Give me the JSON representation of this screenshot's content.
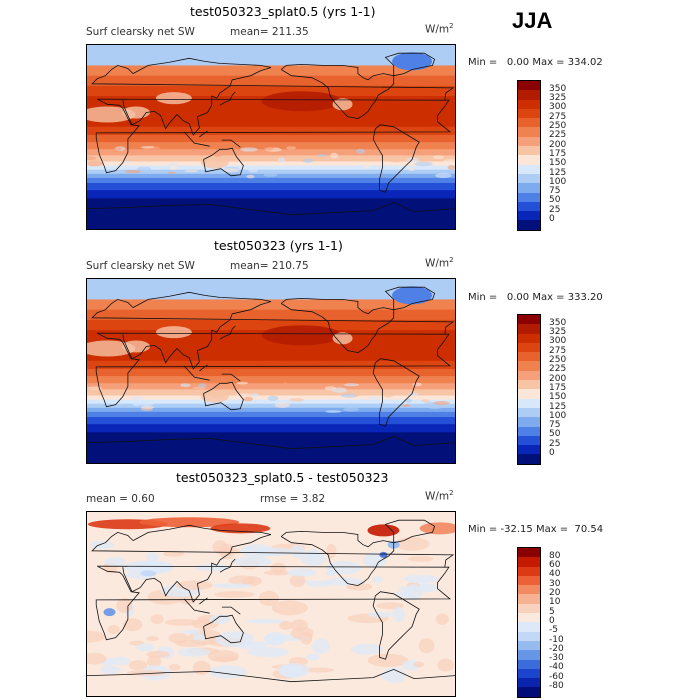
{
  "season": "JJA",
  "panels": [
    {
      "title": "test050323_splat0.5 (yrs 1-1)",
      "field": "Surf clearsky net SW",
      "mean_label": "mean= 211.35",
      "units_base": "W/m",
      "units_exp": "2",
      "min_label": "Min =",
      "min_value": "0.00",
      "max_label": "Max =",
      "max_value": "334.02",
      "colorbar_labels": [
        "350",
        "325",
        "300",
        "275",
        "250",
        "225",
        "200",
        "175",
        "150",
        "125",
        "100",
        "75",
        "50",
        "25",
        "0"
      ],
      "colorbar_colors": [
        "#8b0000",
        "#b31b00",
        "#cc2e00",
        "#dc4410",
        "#e8622e",
        "#f08250",
        "#f5a07a",
        "#f8c4a6",
        "#fbe6d8",
        "#d8e8fb",
        "#aecdf4",
        "#7eaaee",
        "#4e80e6",
        "#2450d8",
        "#0a26b8",
        "#02107a"
      ]
    },
    {
      "title": "test050323 (yrs 1-1)",
      "field": "Surf clearsky net SW",
      "mean_label": "mean= 210.75",
      "units_base": "W/m",
      "units_exp": "2",
      "min_label": "Min =",
      "min_value": "0.00",
      "max_label": "Max =",
      "max_value": "333.20",
      "colorbar_labels": [
        "350",
        "325",
        "300",
        "275",
        "250",
        "225",
        "200",
        "175",
        "150",
        "125",
        "100",
        "75",
        "50",
        "25",
        "0"
      ],
      "colorbar_colors": [
        "#8b0000",
        "#b31b00",
        "#cc2e00",
        "#dc4410",
        "#e8622e",
        "#f08250",
        "#f5a07a",
        "#f8c4a6",
        "#fbe6d8",
        "#d8e8fb",
        "#aecdf4",
        "#7eaaee",
        "#4e80e6",
        "#2450d8",
        "#0a26b8",
        "#02107a"
      ]
    },
    {
      "title": "test050323_splat0.5 - test050323",
      "field": "mean =    0.60",
      "mean_label": "rmse =    3.82",
      "units_base": "W/m",
      "units_exp": "2",
      "min_label": "Min =",
      "min_value": "-32.15",
      "max_label": "Max =",
      "max_value": "70.54",
      "colorbar_labels": [
        "80",
        "60",
        "40",
        "30",
        "20",
        "10",
        "5",
        "0",
        "-5",
        "-10",
        "-20",
        "-30",
        "-40",
        "-60",
        "-80"
      ],
      "colorbar_colors": [
        "#8b0000",
        "#c41a00",
        "#dc3a14",
        "#ec6236",
        "#f28a62",
        "#f6b092",
        "#f9d2be",
        "#fbe9de",
        "#dde9f8",
        "#c2d8f6",
        "#96bbef",
        "#6896e6",
        "#3c6cdc",
        "#1c44cc",
        "#0a24ae",
        "#020e78"
      ]
    }
  ],
  "chart_data": [
    {
      "type": "heatmap",
      "title": "test050323_splat0.5 (yrs 1-1)",
      "variable": "Surf clearsky net SW",
      "units": "W/m2",
      "mean": 211.35,
      "min": 0.0,
      "max": 334.02,
      "contour_levels": [
        0,
        25,
        50,
        75,
        100,
        125,
        150,
        175,
        200,
        225,
        250,
        275,
        300,
        325,
        350
      ]
    },
    {
      "type": "heatmap",
      "title": "test050323 (yrs 1-1)",
      "variable": "Surf clearsky net SW",
      "units": "W/m2",
      "mean": 210.75,
      "min": 0.0,
      "max": 333.2,
      "contour_levels": [
        0,
        25,
        50,
        75,
        100,
        125,
        150,
        175,
        200,
        225,
        250,
        275,
        300,
        325,
        350
      ]
    },
    {
      "type": "heatmap",
      "title": "test050323_splat0.5 - test050323",
      "units": "W/m2",
      "mean": 0.6,
      "rmse": 3.82,
      "min": -32.15,
      "max": 70.54,
      "contour_levels": [
        -80,
        -60,
        -40,
        -30,
        -20,
        -10,
        -5,
        0,
        5,
        10,
        20,
        30,
        40,
        60,
        80
      ]
    }
  ]
}
